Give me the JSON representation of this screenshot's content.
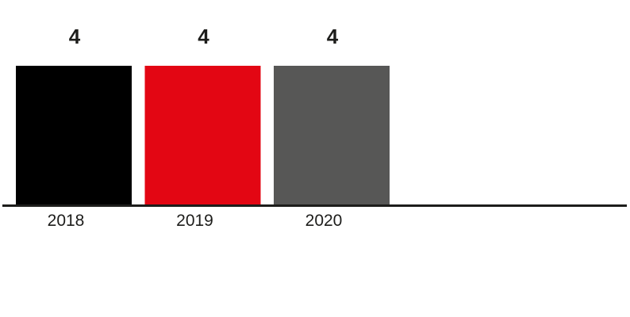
{
  "chart_data": {
    "type": "bar",
    "categories": [
      "2018",
      "2019",
      "2020"
    ],
    "values": [
      4,
      4,
      4
    ],
    "data_labels": [
      "4",
      "4",
      "4"
    ],
    "colors": [
      "#000000",
      "#e30613",
      "#575756"
    ],
    "axis_color": "#1d1d1b",
    "title": "",
    "xlabel": "",
    "ylabel": "",
    "ylim": [
      0,
      4
    ],
    "grid": false,
    "legend": "none"
  }
}
